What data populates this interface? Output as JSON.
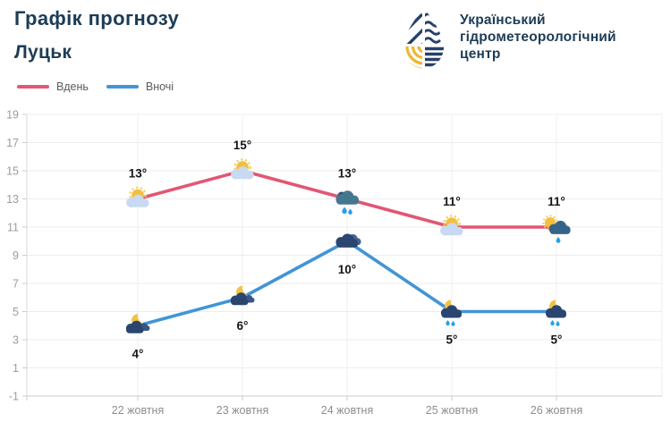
{
  "chart_data": {
    "type": "line",
    "title": "Графік прогнозу",
    "subtitle": "Луцьк",
    "categories": [
      "22 жовтня",
      "23 жовтня",
      "24 жовтня",
      "25 жовтня",
      "26 жовтня"
    ],
    "series": [
      {
        "name": "Вдень",
        "color": "#e25674",
        "label_side": "above",
        "values": [
          13,
          15,
          13,
          11,
          11
        ],
        "point_labels": [
          "13°",
          "15°",
          "13°",
          "11°",
          "11°"
        ],
        "icons": [
          "sun-cloud",
          "sun-cloud",
          "rain-cloud",
          "sun-cloud",
          "sun-rain-cloud"
        ]
      },
      {
        "name": "Вночі",
        "color": "#4195d6",
        "label_side": "below",
        "values": [
          4,
          6,
          10,
          5,
          5
        ],
        "point_labels": [
          "4°",
          "6°",
          "10°",
          "5°",
          "5°"
        ],
        "icons": [
          "moon-clouds",
          "moon-clouds",
          "dark-cloud",
          "moon-rain-cloud",
          "moon-rain-cloud"
        ]
      }
    ],
    "y_ticks": [
      19,
      17,
      15,
      13,
      11,
      9,
      7,
      5,
      3,
      1,
      -1
    ],
    "ylim": [
      -1,
      19
    ],
    "xlabel": "",
    "ylabel": "",
    "grid": true,
    "legend_position": "top-left"
  },
  "logo": {
    "line1": "Український",
    "line2": "гідрометеорологічний",
    "line3": "центр"
  }
}
